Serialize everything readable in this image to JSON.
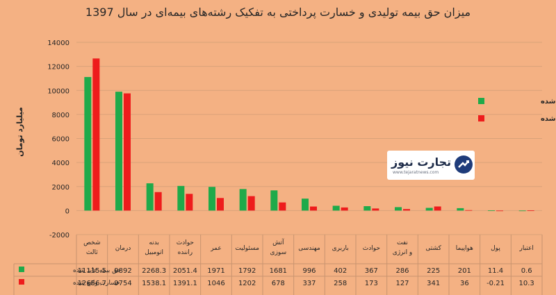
{
  "chart_data": {
    "type": "bar",
    "title": "میزان حق بیمه تولیدی و خسارت پرداختی به تفکیک رشته‌های بیمه‌ای در سال 1397",
    "ylabel": "میلیارد تومان",
    "xlabel": "",
    "ylim": [
      -2000,
      14000
    ],
    "yticks": [
      -2000,
      0,
      2000,
      4000,
      6000,
      8000,
      10000,
      12000,
      14000
    ],
    "grid": true,
    "legend_position": "right",
    "categories": [
      "شخص ثالث",
      "درمان",
      "بدنه اتومبیل",
      "حوادث راننده",
      "عمر",
      "مسئولیت",
      "آتش سوزی",
      "مهندسی",
      "باربری",
      "حوادث",
      "نفت و انرژی",
      "کشتی",
      "هواپیما",
      "پول",
      "اعتبار"
    ],
    "series": [
      {
        "name": "حق بیمه عاید شده",
        "color": "#1faa4a",
        "values": [
          11115.5,
          9892,
          2268.3,
          2051.4,
          1971,
          1792,
          1681,
          996,
          402,
          367,
          286,
          225,
          201,
          11.4,
          0.6
        ],
        "labels": [
          "11115.5",
          "9892",
          "2268.3",
          "2051.4",
          "1971",
          "1792",
          "1681",
          "996",
          "402",
          "367",
          "286",
          "225",
          "201",
          "11.4",
          "0.6"
        ]
      },
      {
        "name": "خسارت واقع شده",
        "color": "#ee1c1c",
        "values": [
          12656.7,
          9754,
          1538.1,
          1391.1,
          1046,
          1202,
          678,
          337,
          258,
          173,
          127,
          341,
          36,
          -0.21,
          10.3
        ],
        "labels": [
          "12656.7",
          "9754",
          "1538.1",
          "1391.1",
          "1046",
          "1202",
          "678",
          "337",
          "258",
          "173",
          "127",
          "341",
          "36",
          "-0.21",
          "10.3"
        ]
      }
    ]
  },
  "watermark": {
    "name": "تجارت نیوز",
    "url": "www.tejaratnews.com"
  }
}
